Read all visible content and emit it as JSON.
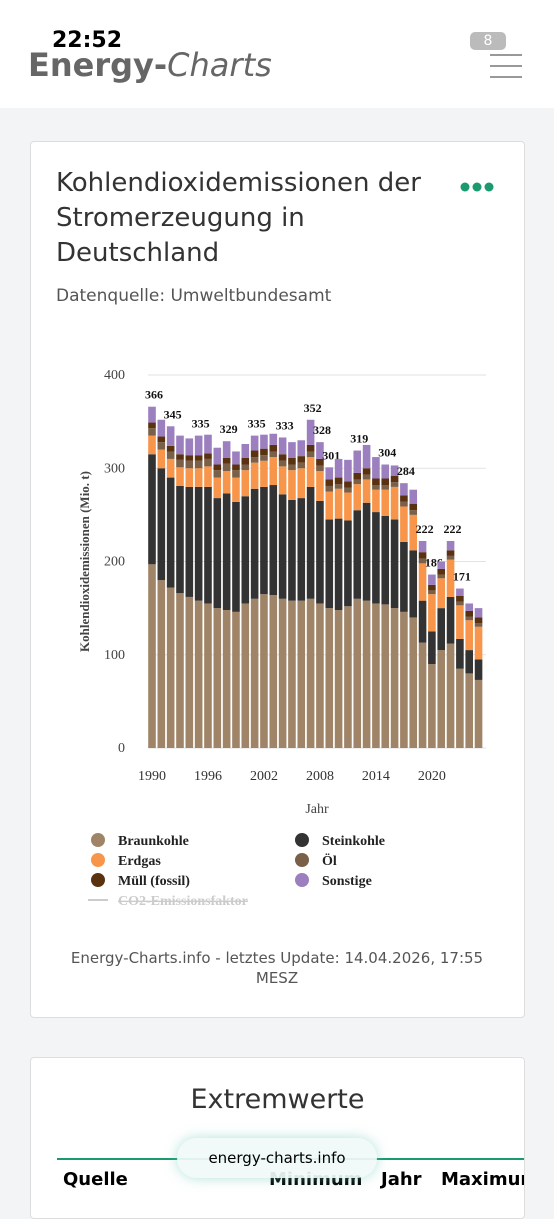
{
  "status_bar": {
    "time": "22:52",
    "battery": "8"
  },
  "header": {
    "logo_part1": "Energy-",
    "logo_part2": "Charts"
  },
  "card": {
    "title": "Kohlendioxidemissionen der Stromerzeugung in Deutschland",
    "source": "Datenquelle: Umweltbundesamt",
    "footer": "Energy-Charts.info - letztes Update: 14.04.2026, 17:55 MESZ"
  },
  "chart_data": {
    "type": "bar",
    "stacked": true,
    "y_label": "Kohlendioxidemissionen (Mio. t)",
    "x_label": "Jahr",
    "categories": [
      "1990",
      null,
      null,
      null,
      null,
      null,
      "1996",
      null,
      null,
      null,
      null,
      null,
      "2002",
      null,
      null,
      null,
      null,
      null,
      "2008",
      null,
      null,
      null,
      null,
      null,
      "2014",
      null,
      null,
      null,
      null,
      null,
      "2020",
      null,
      null,
      null,
      null,
      null
    ],
    "series": [
      {
        "name": "Braunkohle",
        "color": "#a08468",
        "values": [
          197,
          180,
          172,
          166,
          162,
          158,
          155,
          150,
          148,
          146,
          155,
          160,
          165,
          164,
          160,
          158,
          158,
          160,
          155,
          150,
          148,
          152,
          160,
          158,
          155,
          154,
          150,
          146,
          140,
          113,
          90,
          105,
          112,
          85,
          80,
          73
        ]
      },
      {
        "name": "Steinkohle",
        "color": "#333333",
        "values": [
          118,
          120,
          118,
          115,
          118,
          122,
          125,
          118,
          125,
          118,
          115,
          118,
          115,
          118,
          112,
          108,
          110,
          120,
          110,
          95,
          98,
          92,
          95,
          105,
          98,
          95,
          95,
          75,
          72,
          45,
          35,
          45,
          50,
          32,
          25,
          22
        ]
      },
      {
        "name": "Erdgas",
        "color": "#f7964a",
        "values": [
          20,
          20,
          20,
          20,
          20,
          20,
          22,
          22,
          24,
          26,
          28,
          28,
          28,
          30,
          30,
          32,
          32,
          32,
          32,
          30,
          32,
          30,
          28,
          25,
          24,
          28,
          35,
          38,
          38,
          40,
          40,
          32,
          40,
          36,
          32,
          35
        ]
      },
      {
        "name": "Öl",
        "color": "#7a6048",
        "values": [
          8,
          8,
          8,
          8,
          8,
          8,
          8,
          8,
          8,
          8,
          6,
          6,
          6,
          6,
          6,
          6,
          6,
          6,
          6,
          6,
          5,
          5,
          5,
          5,
          5,
          5,
          5,
          5,
          5,
          5,
          4,
          4,
          4,
          4,
          4,
          4
        ]
      },
      {
        "name": "Müll (fossil)",
        "color": "#5a3210",
        "values": [
          6,
          6,
          6,
          6,
          6,
          6,
          6,
          6,
          6,
          6,
          7,
          7,
          7,
          7,
          7,
          7,
          7,
          7,
          7,
          7,
          7,
          7,
          7,
          7,
          7,
          7,
          7,
          7,
          7,
          7,
          6,
          6,
          6,
          6,
          6,
          6
        ]
      },
      {
        "name": "Sonstige",
        "color": "#9b7fbf",
        "values": [
          17,
          18,
          21,
          20,
          18,
          21,
          20,
          18,
          18,
          14,
          15,
          16,
          15,
          12,
          18,
          17,
          17,
          27,
          18,
          13,
          20,
          23,
          24,
          25,
          23,
          15,
          11,
          13,
          15,
          12,
          11,
          8,
          10,
          8,
          8,
          10
        ]
      }
    ],
    "total_labels": [
      366,
      null,
      345,
      null,
      null,
      335,
      null,
      null,
      329,
      null,
      null,
      335,
      null,
      null,
      333,
      null,
      null,
      352,
      328,
      301,
      null,
      null,
      319,
      null,
      null,
      304,
      null,
      284,
      null,
      222,
      186,
      null,
      222,
      171,
      null,
      null
    ],
    "inactive_legend": "CO2-Emissionsfaktor",
    "ylim": [
      0,
      400
    ],
    "yticks": [
      0,
      100,
      200,
      300,
      400
    ],
    "grid": true
  },
  "extremes": {
    "title": "Extremwerte",
    "columns": [
      "Quelle",
      "Minimum",
      "Jahr",
      "Maximum"
    ]
  },
  "url_pill": "energy-charts.info"
}
